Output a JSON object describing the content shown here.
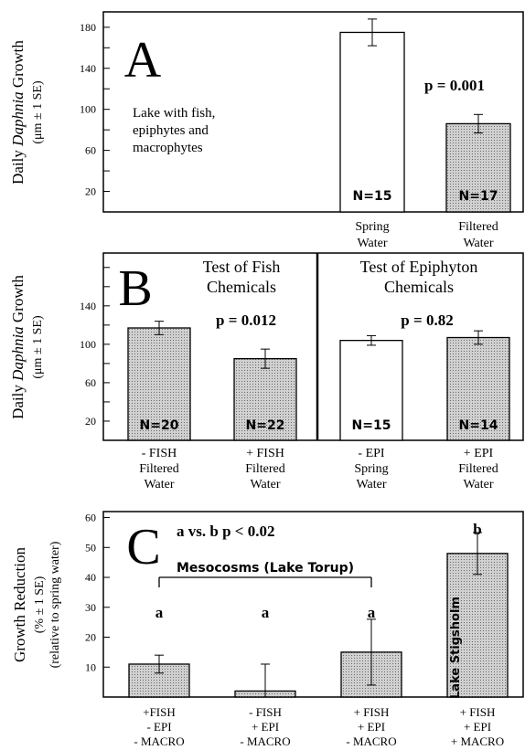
{
  "colors": {
    "bar_white": "#ffffff",
    "bar_gray": "#d0d0d0",
    "line": "#000000"
  },
  "chart_data": [
    {
      "type": "bar",
      "panel_letter": "A",
      "ylabel_parts": [
        "Daily ",
        "Daphnia",
        " Growth"
      ],
      "ylabel_unit": "(μm ± 1 SE)",
      "y_ticks": [
        20,
        60,
        100,
        140,
        180
      ],
      "ylim": [
        0,
        195
      ],
      "annotation": "Lake with fish,\nepiphytes and\nmacrophytes",
      "p_label": "p = 0.001",
      "categories": [
        "Spring\nWater",
        "Filtered\nWater"
      ],
      "values": [
        175,
        86
      ],
      "errors": [
        13,
        9
      ],
      "n_labels": [
        "N=15",
        "N=17"
      ],
      "fills": [
        "white",
        "gray"
      ]
    },
    {
      "type": "bar",
      "panel_letter": "B",
      "ylabel_parts": [
        "Daily ",
        "Daphnia",
        " Growth"
      ],
      "ylabel_unit": "(μm ± 1 SE)",
      "y_ticks": [
        20,
        60,
        100,
        140
      ],
      "ylim": [
        0,
        195
      ],
      "left_title": "Test of Fish\nChemicals",
      "right_title": "Test of Epiphyton\nChemicals",
      "p_left": "p = 0.012",
      "p_right": "p = 0.82",
      "categories": [
        "- FISH\nFiltered\nWater",
        "+ FISH\nFiltered\nWater",
        "- EPI\nSpring\nWater",
        "+ EPI\nFiltered\nWater"
      ],
      "values": [
        117,
        85,
        104,
        107
      ],
      "errors": [
        7,
        10,
        5,
        7
      ],
      "n_labels": [
        "N=20",
        "N=22",
        "N=15",
        "N=14"
      ],
      "fills": [
        "gray",
        "gray",
        "white",
        "gray"
      ]
    },
    {
      "type": "bar",
      "panel_letter": "C",
      "ylabel": "Growth Reduction",
      "ylabel_unit": "(% ± 1 SE)",
      "ylabel_sub": "(relative to spring water)",
      "y_ticks": [
        10,
        20,
        30,
        40,
        50,
        60
      ],
      "ylim": [
        0,
        62
      ],
      "stat_label": "a vs. b p < 0.02",
      "bracket_label": "Mesocosms (Lake Torup)",
      "lake_label": "Lake Stigsholm",
      "categories": [
        "+FISH\n- EPI\n- MACRO",
        "- FISH\n+ EPI\n- MACRO",
        "+ FISH\n+ EPI\n- MACRO",
        "+ FISH\n+ EPI\n+ MACRO"
      ],
      "values": [
        11,
        2,
        15,
        48
      ],
      "errors": [
        3,
        9,
        11,
        7
      ],
      "letters": [
        "a",
        "a",
        "a",
        "b"
      ],
      "fills": [
        "gray",
        "gray",
        "gray",
        "gray"
      ]
    }
  ]
}
